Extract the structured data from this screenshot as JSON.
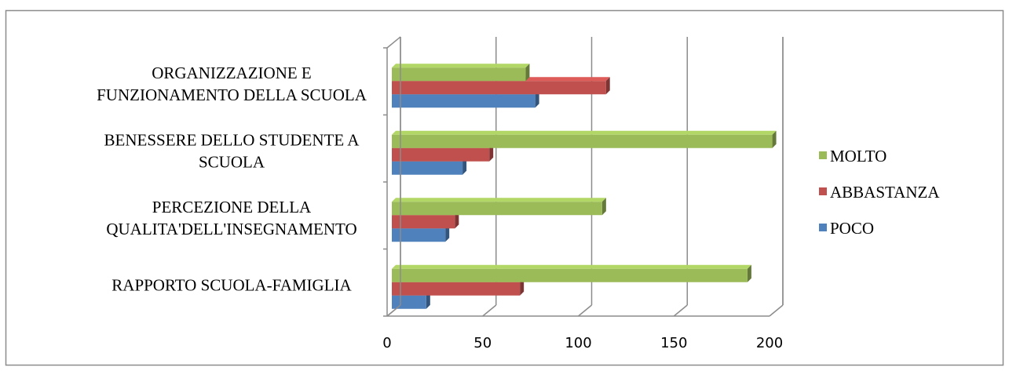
{
  "chart_data": {
    "type": "bar",
    "orientation": "horizontal",
    "style": "3d",
    "categories": [
      [
        "RAPPORTO SCUOLA-FAMIGLIA"
      ],
      [
        "PERCEZIONE DELLA",
        "QUALITA'DELL'INSEGNAMENTO"
      ],
      [
        "BENESSERE DELLO STUDENTE A",
        "SCUOLA"
      ],
      [
        "ORGANIZZAZIONE E",
        "FUNZIONAMENTO DELLA SCUOLA"
      ]
    ],
    "series": [
      {
        "name": "POCO",
        "color": "#4f81bd",
        "values": [
          18,
          28,
          37,
          75
        ]
      },
      {
        "name": "ABBASTANZA",
        "color": "#c0504d",
        "values": [
          67,
          33,
          51,
          112
        ]
      },
      {
        "name": "MOLTO",
        "color": "#9bbb59",
        "values": [
          186,
          110,
          199,
          70
        ]
      }
    ],
    "x_ticks": [
      "0",
      "50",
      "100",
      "150",
      "200"
    ],
    "xlim": [
      0,
      200
    ],
    "grid": true,
    "legend_position": "right",
    "legend_order": [
      "MOLTO",
      "ABBASTANZA",
      "POCO"
    ],
    "title": "",
    "xlabel": "",
    "ylabel": ""
  }
}
